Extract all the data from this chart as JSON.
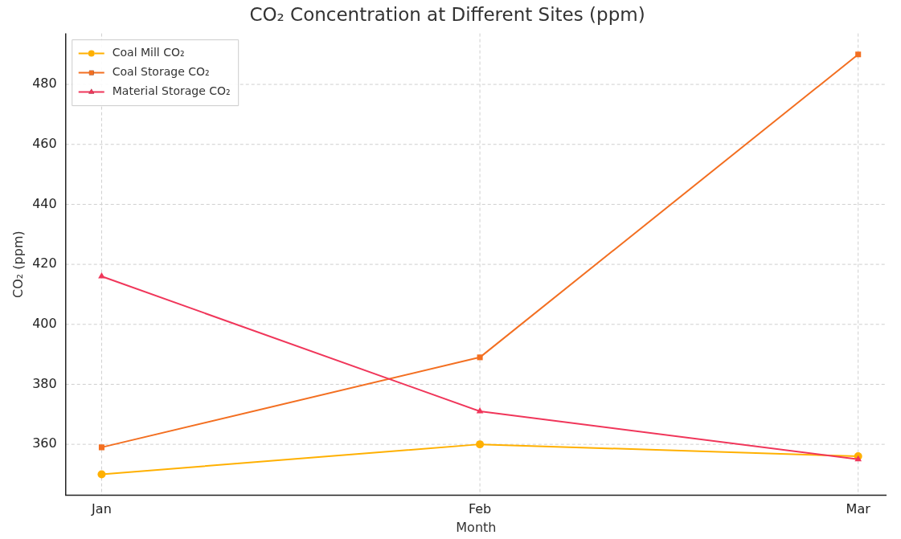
{
  "chart_data": {
    "type": "line",
    "title": "CO₂ Concentration at Different Sites (ppm)",
    "xlabel": "Month",
    "ylabel": "CO₂ (ppm)",
    "categories": [
      "Jan",
      "Feb",
      "Mar"
    ],
    "series": [
      {
        "name": "Coal Mill CO₂",
        "color": "#ffb000",
        "marker": "circle",
        "values": [
          350,
          360,
          356
        ]
      },
      {
        "name": "Coal Storage CO₂",
        "color": "#f36f21",
        "marker": "square",
        "values": [
          359,
          389,
          490
        ]
      },
      {
        "name": "Material Storage CO₂",
        "color": "#f0365a",
        "marker": "triangle",
        "values": [
          416,
          371,
          355
        ]
      }
    ],
    "ylim": [
      343,
      497
    ],
    "yticks": [
      360,
      380,
      400,
      420,
      440,
      460,
      480
    ],
    "grid": true,
    "legend": "top left",
    "line_style": "solid"
  }
}
